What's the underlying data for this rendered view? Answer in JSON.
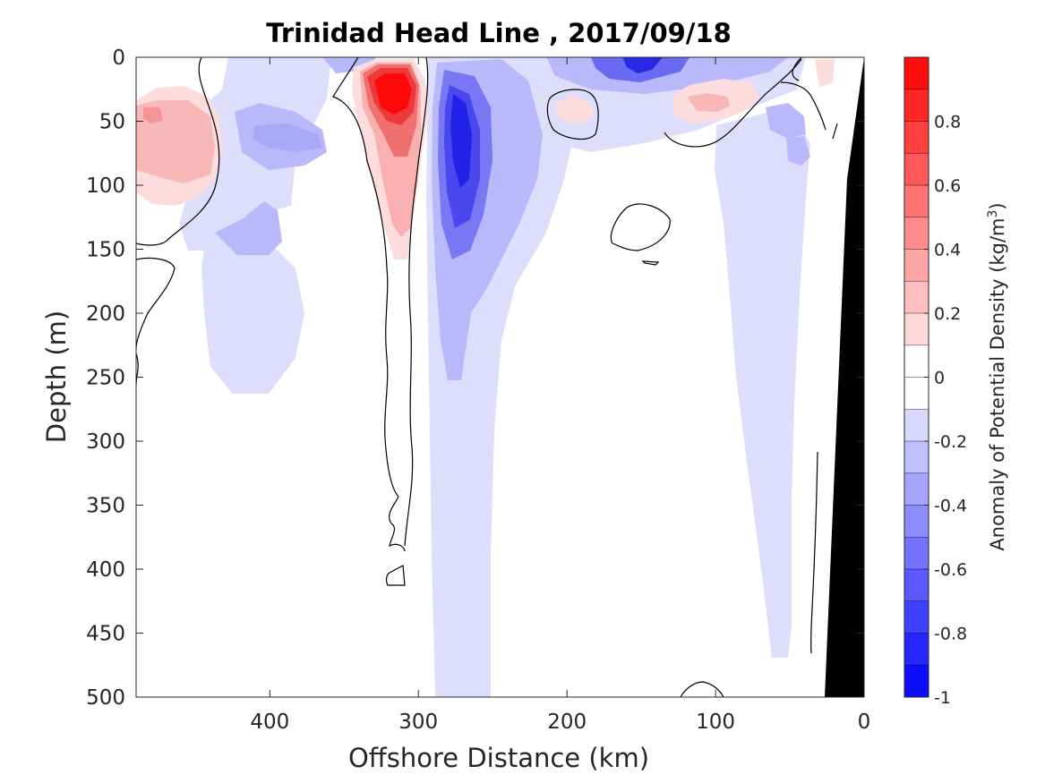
{
  "chart_data": {
    "type": "heatmap",
    "subtype": "filled-contour section",
    "title": "Trinidad Head Line , 2017/09/18",
    "xlabel": "Offshore Distance (km)",
    "ylabel": "Depth (m)",
    "xlim": [
      490,
      0
    ],
    "x_direction": "reversed",
    "ylim": [
      0,
      500
    ],
    "y_direction": "reversed",
    "x_ticks": [
      400,
      300,
      200,
      100,
      0
    ],
    "y_ticks": [
      0,
      50,
      100,
      150,
      200,
      250,
      300,
      350,
      400,
      450,
      500
    ],
    "grid": false,
    "colorbar": {
      "label": "Anomaly of Potential Density (kg/m",
      "label_superscript": "3",
      "label_suffix": ")",
      "range": [
        -1,
        1
      ],
      "contour_interval": 0.1,
      "ticks": [
        0.8,
        0.6,
        0.4,
        0.2,
        0,
        -0.2,
        -0.4,
        -0.6,
        -0.8,
        -1
      ],
      "tick_labels": [
        "0.8",
        "0.6",
        "0.4",
        "0.2",
        "0",
        "-0.2",
        "-0.4",
        "-0.6",
        "-0.8",
        "-1"
      ],
      "colormap": "blue-white-red (diverging)",
      "color_max": "#ff0000",
      "color_min": "#0000ff",
      "color_zero": "#ffffff"
    },
    "features": [
      {
        "sign": "positive",
        "x_center_km": 316,
        "depth_center_m": 30,
        "depth_extent_m": [
          0,
          165
        ],
        "peak_anomaly": 1.0
      },
      {
        "sign": "negative",
        "x_center_km": 270,
        "depth_center_m": 80,
        "depth_extent_m": [
          0,
          500
        ],
        "peak_anomaly": -0.8
      },
      {
        "sign": "negative",
        "x_center_km": 150,
        "depth_center_m": 5,
        "depth_extent_m": [
          0,
          30
        ],
        "peak_anomaly": -0.8
      },
      {
        "sign": "positive",
        "x_center_km": 465,
        "depth_center_m": 55,
        "depth_extent_m": [
          5,
          110
        ],
        "peak_anomaly": 0.3
      },
      {
        "sign": "positive",
        "x_center_km": 110,
        "depth_center_m": 35,
        "depth_extent_m": [
          15,
          60
        ],
        "peak_anomaly": 0.3
      },
      {
        "sign": "positive",
        "x_center_km": 195,
        "depth_center_m": 40,
        "depth_extent_m": [
          25,
          55
        ],
        "peak_anomaly": 0.1
      },
      {
        "sign": "negative",
        "x_center_km": 405,
        "depth_center_m": 60,
        "depth_extent_m": [
          40,
          90
        ],
        "peak_anomaly": -0.4
      },
      {
        "sign": "negative",
        "x_center_km": 55,
        "depth_center_m": 120,
        "depth_extent_m": [
          40,
          470
        ],
        "peak_anomaly": -0.3
      }
    ],
    "bathymetry": {
      "color": "#000000",
      "x_km_at_surface": 0,
      "x_km_at_500m": 28
    }
  }
}
